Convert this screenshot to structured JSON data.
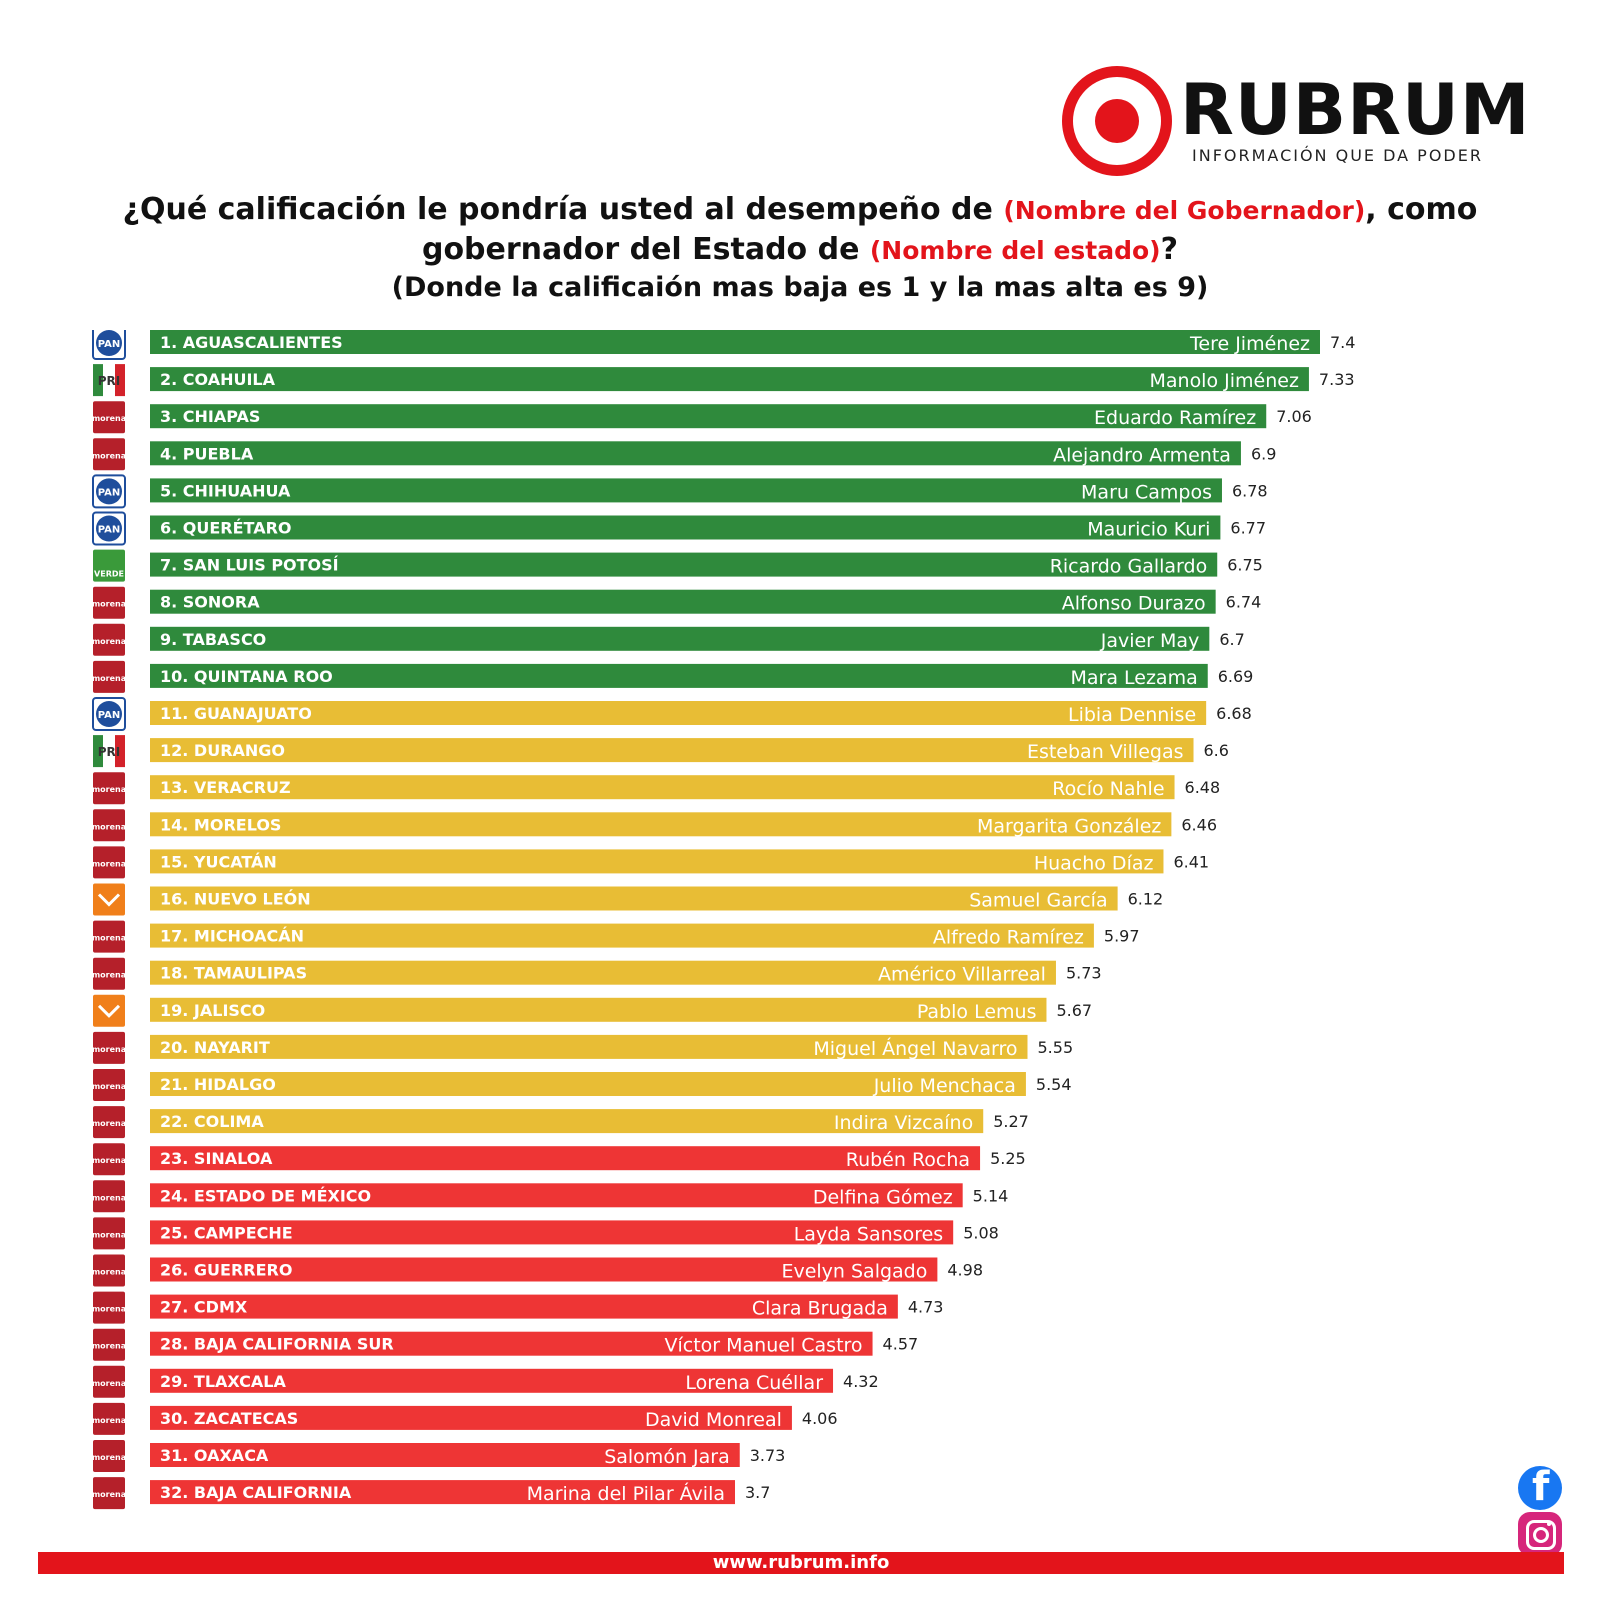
{
  "brand": {
    "name": "RUBRUM",
    "tagline": "INFORMACIÓN QUE DA PODER",
    "website": "www.rubrum.info",
    "accent": "#e3141b"
  },
  "question": {
    "part1": "¿Qué calificación le pondría usted al desempeño de ",
    "placeholder_governor": "(Nombre del Gobernador)",
    "part2": ", como",
    "part3": "gobernador del Estado de ",
    "placeholder_state": "(Nombre del estado)",
    "part4": "?",
    "scale_note": "(Donde la calificaión mas baja es 1 y la mas alta es 9)"
  },
  "social": {
    "icons": [
      "facebook-icon",
      "instagram-icon"
    ]
  },
  "chart_data": {
    "type": "bar",
    "orientation": "horizontal",
    "colors": {
      "high": "#2f8a3c",
      "mid": "#e8bd35",
      "low": "#ee3535"
    },
    "rows": [
      {
        "label": "1. AGUASCALIENTES",
        "governor": "Tere Jiménez",
        "value": 7.4,
        "value_label": "7.4",
        "party": "PAN",
        "tier": "high"
      },
      {
        "label": "2. COAHUILA",
        "governor": "Manolo Jiménez",
        "value": 7.33,
        "value_label": "7.33",
        "party": "PRI",
        "tier": "high"
      },
      {
        "label": "3. CHIAPAS",
        "governor": "Eduardo Ramírez",
        "value": 7.06,
        "value_label": "7.06",
        "party": "morena",
        "tier": "high"
      },
      {
        "label": "4. PUEBLA",
        "governor": "Alejandro Armenta",
        "value": 6.9,
        "value_label": "6.9",
        "party": "morena",
        "tier": "high"
      },
      {
        "label": "5. CHIHUAHUA",
        "governor": "Maru Campos",
        "value": 6.78,
        "value_label": "6.78",
        "party": "PAN",
        "tier": "high"
      },
      {
        "label": "6. QUERÉTARO",
        "governor": "Mauricio Kuri",
        "value": 6.77,
        "value_label": "6.77",
        "party": "PAN",
        "tier": "high"
      },
      {
        "label": "7. SAN LUIS POTOSÍ",
        "governor": "Ricardo Gallardo",
        "value": 6.75,
        "value_label": "6.75",
        "party": "VERDE",
        "tier": "high"
      },
      {
        "label": "8. SONORA",
        "governor": "Alfonso Durazo",
        "value": 6.74,
        "value_label": "6.74",
        "party": "morena",
        "tier": "high"
      },
      {
        "label": "9. TABASCO",
        "governor": "Javier May",
        "value": 6.7,
        "value_label": "6.7",
        "party": "morena",
        "tier": "high"
      },
      {
        "label": "10. QUINTANA ROO",
        "governor": "Mara Lezama",
        "value": 6.69,
        "value_label": "6.69",
        "party": "morena",
        "tier": "high"
      },
      {
        "label": "11. GUANAJUATO",
        "governor": "Libia Dennise",
        "value": 6.68,
        "value_label": "6.68",
        "party": "PAN",
        "tier": "mid"
      },
      {
        "label": "12. DURANGO",
        "governor": "Esteban Villegas",
        "value": 6.6,
        "value_label": "6.6",
        "party": "PRI",
        "tier": "mid"
      },
      {
        "label": "13. VERACRUZ",
        "governor": "Rocío Nahle",
        "value": 6.48,
        "value_label": "6.48",
        "party": "morena",
        "tier": "mid"
      },
      {
        "label": "14. MORELOS",
        "governor": "Margarita González",
        "value": 6.46,
        "value_label": "6.46",
        "party": "morena",
        "tier": "mid"
      },
      {
        "label": "15. YUCATÁN",
        "governor": "Huacho Díaz",
        "value": 6.41,
        "value_label": "6.41",
        "party": "morena",
        "tier": "mid"
      },
      {
        "label": "16. NUEVO LEÓN",
        "governor": "Samuel García",
        "value": 6.12,
        "value_label": "6.12",
        "party": "MC",
        "tier": "mid"
      },
      {
        "label": "17. MICHOACÁN",
        "governor": "Alfredo Ramírez",
        "value": 5.97,
        "value_label": "5.97",
        "party": "morena",
        "tier": "mid"
      },
      {
        "label": "18. TAMAULIPAS",
        "governor": "Américo Villarreal",
        "value": 5.73,
        "value_label": "5.73",
        "party": "morena",
        "tier": "mid"
      },
      {
        "label": "19. JALISCO",
        "governor": "Pablo Lemus",
        "value": 5.67,
        "value_label": "5.67",
        "party": "MC",
        "tier": "mid"
      },
      {
        "label": "20. NAYARIT",
        "governor": "Miguel Ángel Navarro",
        "value": 5.55,
        "value_label": "5.55",
        "party": "morena",
        "tier": "mid"
      },
      {
        "label": "21. HIDALGO",
        "governor": "Julio Menchaca",
        "value": 5.54,
        "value_label": "5.54",
        "party": "morena",
        "tier": "mid"
      },
      {
        "label": "22. COLIMA",
        "governor": "Indira Vizcaíno",
        "value": 5.27,
        "value_label": "5.27",
        "party": "morena",
        "tier": "mid"
      },
      {
        "label": "23. SINALOA",
        "governor": "Rubén Rocha",
        "value": 5.25,
        "value_label": "5.25",
        "party": "morena",
        "tier": "low"
      },
      {
        "label": "24. ESTADO DE MÉXICO",
        "governor": "Delfina Gómez",
        "value": 5.14,
        "value_label": "5.14",
        "party": "morena",
        "tier": "low"
      },
      {
        "label": "25. CAMPECHE",
        "governor": "Layda Sansores",
        "value": 5.08,
        "value_label": "5.08",
        "party": "morena",
        "tier": "low"
      },
      {
        "label": "26. GUERRERO",
        "governor": "Evelyn Salgado",
        "value": 4.98,
        "value_label": "4.98",
        "party": "morena",
        "tier": "low"
      },
      {
        "label": "27. CDMX",
        "governor": "Clara Brugada",
        "value": 4.73,
        "value_label": "4.73",
        "party": "morena",
        "tier": "low"
      },
      {
        "label": "28. BAJA CALIFORNIA SUR",
        "governor": "Víctor Manuel Castro",
        "value": 4.57,
        "value_label": "4.57",
        "party": "morena",
        "tier": "low"
      },
      {
        "label": "29. TLAXCALA",
        "governor": "Lorena Cuéllar",
        "value": 4.32,
        "value_label": "4.32",
        "party": "morena",
        "tier": "low"
      },
      {
        "label": "30. ZACATECAS",
        "governor": "David Monreal",
        "value": 4.06,
        "value_label": "4.06",
        "party": "morena",
        "tier": "low"
      },
      {
        "label": "31. OAXACA",
        "governor": "Salomón Jara",
        "value": 3.73,
        "value_label": "3.73",
        "party": "morena",
        "tier": "low"
      },
      {
        "label": "32. BAJA CALIFORNIA",
        "governor": "Marina del Pilar Ávila",
        "value": 3.7,
        "value_label": "3.7",
        "party": "morena",
        "tier": "low"
      }
    ]
  }
}
